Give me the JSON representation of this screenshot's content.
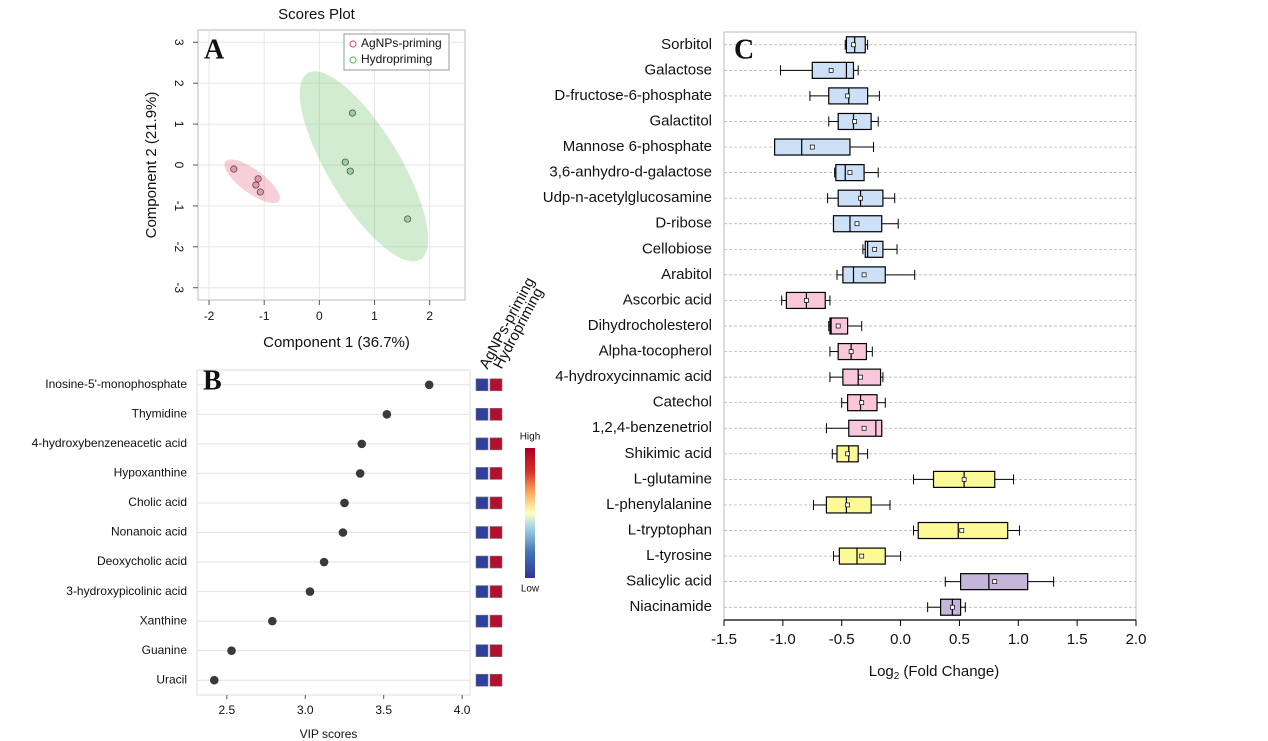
{
  "chart_data": [
    {
      "type": "scatter",
      "panel": "A",
      "title": "Scores Plot",
      "xlabel": "Component 1 (36.7%)",
      "ylabel": "Component 2 (21.9%)",
      "xlim": [
        -2.2,
        2.64
      ],
      "ylim": [
        -3.3,
        3.3
      ],
      "xticks": [
        -2,
        -1,
        0,
        1,
        2
      ],
      "yticks": [
        -3,
        -2,
        -1,
        0,
        1,
        2,
        3
      ],
      "grid": true,
      "legend": "top-right",
      "series": [
        {
          "name": "AgNPs-priming",
          "color": "#e0607e",
          "x": [
            -1.55,
            -1.11,
            -1.15,
            -1.07
          ],
          "y": [
            -0.1,
            -0.34,
            -0.49,
            -0.66
          ]
        },
        {
          "name": "Hydropriming",
          "color": "#6abf69",
          "x": [
            0.6,
            0.47,
            0.56,
            1.6
          ],
          "y": [
            1.27,
            0.07,
            -0.15,
            -1.32
          ]
        }
      ]
    },
    {
      "type": "dot",
      "panel": "B",
      "xlabel": "VIP scores",
      "xlim": [
        2.31,
        4.05
      ],
      "xticks": [
        2.5,
        {
          "value": 3.0,
          "label": "3.0"
        },
        3.5,
        {
          "value": 4.0,
          "label": "4.0"
        }
      ],
      "categories": [
        "Inosine-5'-monophosphate",
        "Thymidine",
        "4-hydroxybenzeneacetic acid",
        "Hypoxanthine",
        "Cholic acid",
        "Nonanoic acid",
        "Deoxycholic acid",
        "3-hydroxypicolinic acid",
        "Xanthine",
        "Guanine",
        "Uracil"
      ],
      "values": [
        3.79,
        3.52,
        3.36,
        3.35,
        3.25,
        3.24,
        3.12,
        3.03,
        2.79,
        2.53,
        2.42
      ],
      "color": "#3a3a3a",
      "heatmap": {
        "columns": [
          "AgNPs-priming",
          "Hydropriming"
        ],
        "colors": [
          "#313f9c",
          "#b2102e"
        ],
        "high": "High",
        "low": "Low"
      }
    },
    {
      "type": "box",
      "panel": "C",
      "xlabel": [
        "Log",
        "2",
        "(Fold Change)"
      ],
      "xlim": [
        -1.5,
        2.0
      ],
      "xticks": [
        -1.5,
        {
          "value": -1.0,
          "label": "-1.0"
        },
        -0.5,
        {
          "value": 0.0,
          "label": "0.0"
        },
        0.5,
        {
          "value": 1.0,
          "label": "1.0"
        },
        1.5,
        {
          "value": 2.0,
          "label": "2.0"
        }
      ],
      "categories": [
        "Sorbitol",
        "Galactose",
        "D-fructose-6-phosphate",
        "Galactitol",
        "Mannose 6-phosphate",
        "3,6-anhydro-d-galactose",
        "Udp-n-acetylglucosamine",
        "D-ribose",
        "Cellobiose",
        "Arabitol",
        "Ascorbic acid",
        "Dihydrocholesterol",
        "Alpha-tocopherol",
        "4-hydroxycinnamic acid",
        "Catechol",
        "1,2,4-benzenetriol",
        "Shikimic acid",
        "L-glutamine",
        "L-phenylalanine",
        "L-tryptophan",
        "L-tyrosine",
        "Salicylic acid",
        "Niacinamide"
      ],
      "min": [
        -0.47,
        -1.02,
        -0.77,
        -0.61,
        -1.07,
        -0.56,
        -0.62,
        -0.57,
        -0.32,
        -0.54,
        -1.01,
        -0.61,
        -0.6,
        -0.6,
        -0.5,
        -0.63,
        -0.58,
        0.11,
        -0.74,
        0.11,
        -0.57,
        0.38,
        0.23
      ],
      "q1": [
        -0.46,
        -0.75,
        -0.61,
        -0.53,
        -1.07,
        -0.55,
        -0.53,
        -0.57,
        -0.3,
        -0.49,
        -0.97,
        -0.6,
        -0.53,
        -0.49,
        -0.45,
        -0.44,
        -0.54,
        0.28,
        -0.63,
        0.15,
        -0.52,
        0.51,
        0.34
      ],
      "median": [
        -0.39,
        -0.46,
        -0.44,
        -0.4,
        -0.84,
        -0.47,
        -0.34,
        -0.43,
        -0.28,
        -0.4,
        -0.8,
        -0.59,
        -0.42,
        -0.36,
        -0.34,
        -0.21,
        -0.44,
        0.54,
        -0.46,
        0.49,
        -0.37,
        0.75,
        0.44
      ],
      "q3": [
        -0.3,
        -0.4,
        -0.28,
        -0.25,
        -0.43,
        -0.31,
        -0.15,
        -0.16,
        -0.15,
        -0.13,
        -0.64,
        -0.45,
        -0.29,
        -0.17,
        -0.2,
        -0.16,
        -0.36,
        0.8,
        -0.25,
        0.91,
        -0.13,
        1.08,
        0.51
      ],
      "max": [
        -0.28,
        -0.36,
        -0.18,
        -0.19,
        -0.23,
        -0.19,
        -0.05,
        -0.02,
        -0.03,
        0.12,
        -0.6,
        -0.33,
        -0.24,
        -0.15,
        -0.13,
        -0.16,
        -0.28,
        0.96,
        -0.09,
        1.01,
        0.0,
        1.3,
        0.55
      ],
      "mean": [
        -0.4,
        -0.59,
        -0.45,
        -0.39,
        -0.75,
        -0.43,
        -0.34,
        -0.37,
        -0.22,
        -0.31,
        -0.8,
        -0.53,
        -0.42,
        -0.34,
        -0.33,
        -0.31,
        -0.45,
        0.54,
        -0.45,
        0.52,
        -0.33,
        0.8,
        0.44
      ],
      "colors": [
        "#cce0f7",
        "#cce0f7",
        "#cce0f7",
        "#cce0f7",
        "#cce0f7",
        "#cce0f7",
        "#cce0f7",
        "#cce0f7",
        "#cce0f7",
        "#cce0f7",
        "#f9c6dc",
        "#f9c6dc",
        "#f9c6dc",
        "#f9c6dc",
        "#f9c6dc",
        "#f9c6dc",
        "#fbfa97",
        "#fbfa97",
        "#fbfa97",
        "#fbfa97",
        "#fbfa97",
        "#c6b5da",
        "#c6b5da"
      ]
    }
  ]
}
